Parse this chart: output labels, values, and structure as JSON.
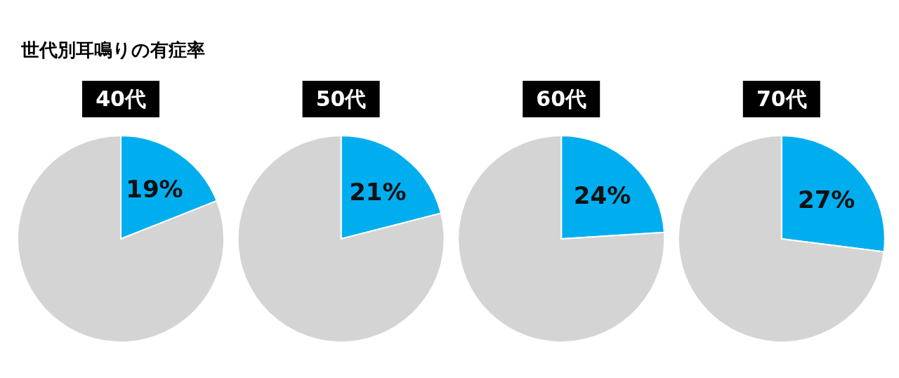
{
  "chart_data": [
    {
      "type": "pie",
      "title": "40代",
      "annotations": [
        "世代別耳鳴りの有症率"
      ],
      "categories": [
        null,
        null
      ],
      "values": [
        19,
        81
      ],
      "colors": [
        "#00aeef",
        "#d4d4d4"
      ],
      "value_labels": [
        "19%",
        null
      ]
    },
    {
      "type": "pie",
      "title": "50代",
      "categories": [
        null,
        null
      ],
      "values": [
        21,
        79
      ],
      "colors": [
        "#00aeef",
        "#d4d4d4"
      ],
      "value_labels": [
        "21%",
        null
      ]
    },
    {
      "type": "pie",
      "title": "60代",
      "categories": [
        null,
        null
      ],
      "values": [
        24,
        76
      ],
      "colors": [
        "#00aeef",
        "#d4d4d4"
      ],
      "value_labels": [
        "24%",
        null
      ]
    },
    {
      "type": "pie",
      "title": "70代",
      "categories": [
        null,
        null
      ],
      "values": [
        27,
        73
      ],
      "colors": [
        "#00aeef",
        "#d4d4d4"
      ],
      "value_labels": [
        "27%",
        null
      ]
    }
  ]
}
